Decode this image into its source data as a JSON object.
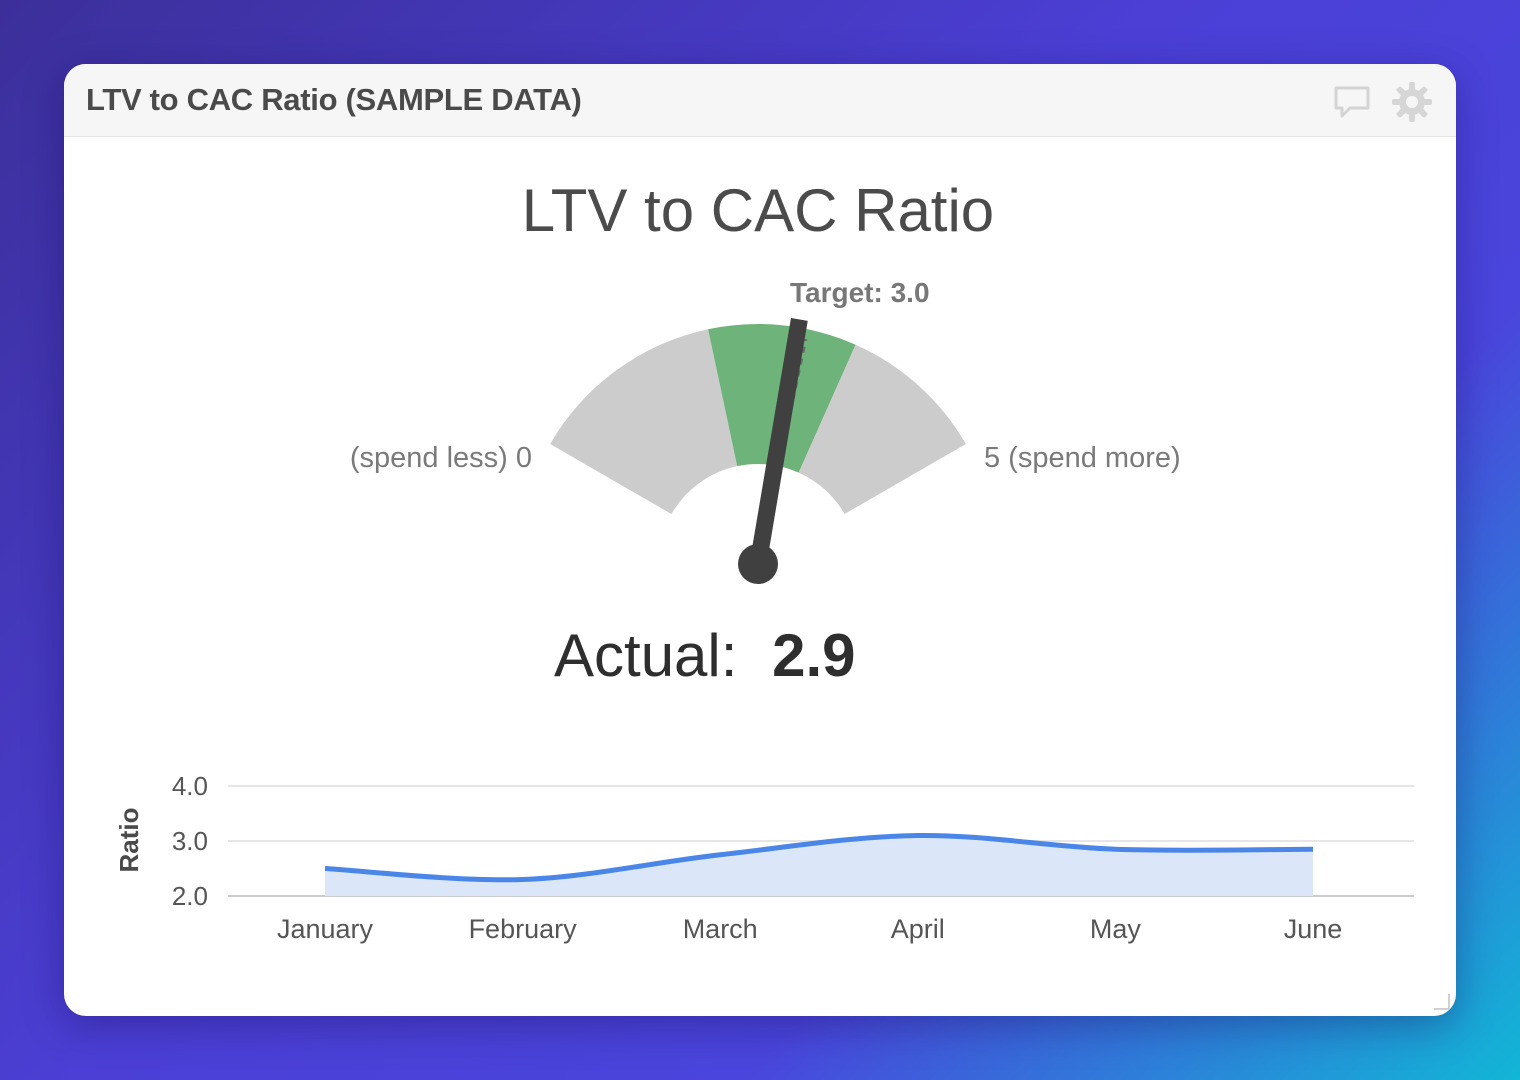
{
  "widget": {
    "title": "LTV to CAC Ratio (SAMPLE DATA)",
    "icons": {
      "comment": "comment-icon",
      "settings": "gear-icon"
    }
  },
  "gauge": {
    "title": "LTV to CAC Ratio",
    "min": 0,
    "max": 5,
    "min_label": "(spend less) 0",
    "max_label": "5 (spend more)",
    "target": 3.0,
    "target_label": "Target: 3.0",
    "actual": 2.9,
    "actual_prefix": "Actual:",
    "actual_value": "2.9",
    "bands": [
      {
        "from": 0,
        "to": 2,
        "color": "#cccccc"
      },
      {
        "from": 2,
        "to": 3.5,
        "color": "#6db37a"
      },
      {
        "from": 3.5,
        "to": 5,
        "color": "#cccccc"
      }
    ],
    "needle_color": "#404040"
  },
  "chart_data": {
    "type": "area",
    "categories": [
      "January",
      "February",
      "March",
      "April",
      "May",
      "June"
    ],
    "values": [
      2.5,
      2.3,
      2.75,
      3.1,
      2.85,
      2.85
    ],
    "ylabel": "Ratio",
    "xlabel": "",
    "ylim": [
      2.0,
      4.0
    ],
    "yticks": [
      "4.0",
      "3.0",
      "2.0"
    ],
    "grid": true,
    "line_color": "#4a86e8",
    "fill_color": "#dbe6f8"
  }
}
